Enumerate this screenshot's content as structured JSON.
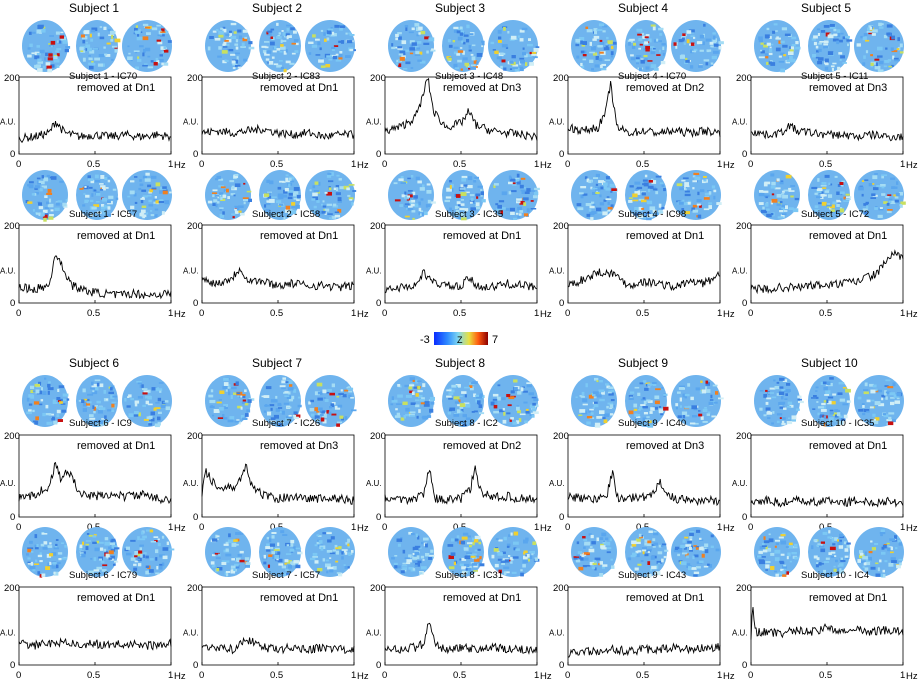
{
  "figure": {
    "colorbar": {
      "min_label": "-3",
      "mid_label": "Z",
      "max_label": "7",
      "colors": [
        "#0a2cff",
        "#2f8cff",
        "#7fd7f0",
        "#e8e040",
        "#ff5a10",
        "#8b0000"
      ]
    },
    "map_palette": [
      "#3a7fe0",
      "#5aa6ee",
      "#7cc8f4",
      "#a4dcf4",
      "#d0eef6",
      "#c8e060",
      "#f0d030",
      "#f08020",
      "#c81010"
    ]
  },
  "chart_data": [
    {
      "type": "line",
      "subject": "Subject 1",
      "component": "Subject 1 - IC70",
      "status": "removed at Dn1",
      "ylabel": "A.U.",
      "ylim": [
        0,
        200
      ],
      "xlim": [
        0,
        1
      ],
      "x_unit": "Hz",
      "xticks": [
        "0",
        "0.5",
        "1"
      ],
      "yticks": [
        "0",
        "200"
      ],
      "x": [
        0,
        0.1,
        0.2,
        0.24,
        0.27,
        0.3,
        0.4,
        0.5,
        0.6,
        0.7,
        0.8,
        0.9,
        1.0
      ],
      "y": [
        40,
        45,
        55,
        85,
        70,
        55,
        45,
        50,
        45,
        50,
        45,
        50,
        45
      ]
    },
    {
      "type": "line",
      "subject": "Subject 2",
      "component": "Subject 2 - IC83",
      "status": "removed at Dn1",
      "ylabel": "A.U.",
      "ylim": [
        0,
        200
      ],
      "xlim": [
        0,
        1
      ],
      "x_unit": "Hz",
      "xticks": [
        "0",
        "0.5",
        "1"
      ],
      "yticks": [
        "0",
        "200"
      ],
      "x": [
        0,
        0.1,
        0.2,
        0.3,
        0.4,
        0.5,
        0.6,
        0.7,
        0.8,
        0.9,
        1.0
      ],
      "y": [
        55,
        60,
        55,
        60,
        65,
        55,
        50,
        55,
        45,
        50,
        50
      ]
    },
    {
      "type": "line",
      "subject": "Subject 3",
      "component": "Subject 3 - IC48",
      "status": "removed at Dn3",
      "ylabel": "A.U.",
      "ylim": [
        0,
        200
      ],
      "xlim": [
        0,
        1
      ],
      "x_unit": "Hz",
      "xticks": [
        "0",
        "0.5",
        "1"
      ],
      "yticks": [
        "0",
        "200"
      ],
      "x": [
        0,
        0.1,
        0.2,
        0.25,
        0.28,
        0.32,
        0.4,
        0.5,
        0.55,
        0.6,
        0.7,
        0.8,
        0.9,
        1.0
      ],
      "y": [
        60,
        70,
        95,
        150,
        200,
        110,
        70,
        80,
        110,
        75,
        60,
        55,
        50,
        45
      ]
    },
    {
      "type": "line",
      "subject": "Subject 4",
      "component": "Subject 4 - IC70",
      "status": "removed at Dn2",
      "ylabel": "A.U.",
      "ylim": [
        0,
        200
      ],
      "xlim": [
        0,
        1
      ],
      "x_unit": "Hz",
      "xticks": [
        "0",
        "0.5",
        "1"
      ],
      "yticks": [
        "0",
        "200"
      ],
      "x": [
        0,
        0.1,
        0.2,
        0.25,
        0.28,
        0.32,
        0.4,
        0.5,
        0.6,
        0.7,
        0.8,
        0.9,
        1.0
      ],
      "y": [
        70,
        60,
        70,
        110,
        185,
        70,
        55,
        60,
        55,
        60,
        55,
        60,
        55
      ]
    },
    {
      "type": "line",
      "subject": "Subject 5",
      "component": "Subject 5 - IC11",
      "status": "removed at Dn3",
      "ylabel": "A.U.",
      "ylim": [
        0,
        200
      ],
      "xlim": [
        0,
        1
      ],
      "x_unit": "Hz",
      "xticks": [
        "0",
        "0.5",
        "1"
      ],
      "yticks": [
        "0",
        "200"
      ],
      "x": [
        0,
        0.1,
        0.2,
        0.25,
        0.3,
        0.4,
        0.5,
        0.6,
        0.7,
        0.8,
        0.9,
        1.0
      ],
      "y": [
        60,
        50,
        55,
        75,
        60,
        55,
        50,
        50,
        45,
        50,
        45,
        45
      ]
    },
    {
      "type": "line",
      "subject": "Subject 1",
      "component": "Subject 1 - IC57",
      "status": "removed at Dn1",
      "ylabel": "A.U.",
      "ylim": [
        0,
        200
      ],
      "xlim": [
        0,
        1
      ],
      "x_unit": "Hz",
      "xticks": [
        "0",
        "0.5",
        "1"
      ],
      "yticks": [
        "0",
        "200"
      ],
      "x": [
        0,
        0.1,
        0.2,
        0.24,
        0.28,
        0.35,
        0.45,
        0.55,
        0.65,
        0.75,
        0.85,
        1.0
      ],
      "y": [
        40,
        35,
        45,
        130,
        95,
        45,
        30,
        25,
        20,
        25,
        20,
        25
      ]
    },
    {
      "type": "line",
      "subject": "Subject 2",
      "component": "Subject 2 - IC58",
      "status": "removed at Dn1",
      "ylabel": "A.U.",
      "ylim": [
        0,
        200
      ],
      "xlim": [
        0,
        1
      ],
      "x_unit": "Hz",
      "xticks": [
        "0",
        "0.5",
        "1"
      ],
      "yticks": [
        "0",
        "200"
      ],
      "x": [
        0,
        0.1,
        0.2,
        0.25,
        0.3,
        0.4,
        0.5,
        0.6,
        0.7,
        0.8,
        0.9,
        1.0
      ],
      "y": [
        60,
        50,
        65,
        90,
        60,
        55,
        45,
        50,
        45,
        45,
        40,
        45
      ]
    },
    {
      "type": "line",
      "subject": "Subject 3",
      "component": "Subject 3 - IC35",
      "status": "removed at Dn1",
      "ylabel": "A.U.",
      "ylim": [
        0,
        200
      ],
      "xlim": [
        0,
        1
      ],
      "x_unit": "Hz",
      "xticks": [
        "0",
        "0.5",
        "1"
      ],
      "yticks": [
        "0",
        "200"
      ],
      "x": [
        0,
        0.1,
        0.2,
        0.26,
        0.3,
        0.4,
        0.5,
        0.55,
        0.6,
        0.7,
        0.8,
        0.9,
        1.0
      ],
      "y": [
        35,
        40,
        45,
        80,
        55,
        45,
        40,
        65,
        45,
        40,
        50,
        45,
        40
      ]
    },
    {
      "type": "line",
      "subject": "Subject 4",
      "component": "Subject 4 - IC98",
      "status": "removed at Dn1",
      "ylabel": "A.U.",
      "ylim": [
        0,
        200
      ],
      "xlim": [
        0,
        1
      ],
      "x_unit": "Hz",
      "xticks": [
        "0",
        "0.5",
        "1"
      ],
      "yticks": [
        "0",
        "200"
      ],
      "x": [
        0,
        0.1,
        0.2,
        0.3,
        0.4,
        0.5,
        0.6,
        0.7,
        0.8,
        0.9,
        1.0
      ],
      "y": [
        45,
        60,
        80,
        75,
        45,
        55,
        50,
        40,
        55,
        50,
        75
      ]
    },
    {
      "type": "line",
      "subject": "Subject 5",
      "component": "Subject 5 - IC72",
      "status": "removed at Dn1",
      "ylabel": "A.U.",
      "ylim": [
        0,
        200
      ],
      "xlim": [
        0,
        1
      ],
      "x_unit": "Hz",
      "xticks": [
        "0",
        "0.5",
        "1"
      ],
      "yticks": [
        "0",
        "200"
      ],
      "x": [
        0,
        0.1,
        0.2,
        0.3,
        0.4,
        0.5,
        0.6,
        0.7,
        0.75,
        0.8,
        0.85,
        0.9,
        0.95,
        1.0
      ],
      "y": [
        35,
        35,
        40,
        40,
        45,
        45,
        50,
        55,
        65,
        70,
        85,
        115,
        125,
        110
      ]
    },
    {
      "type": "line",
      "subject": "Subject 6",
      "component": "Subject 6 - IC9",
      "status": "removed at Dn1",
      "ylabel": "A.U.",
      "ylim": [
        0,
        200
      ],
      "xlim": [
        0,
        1
      ],
      "x_unit": "Hz",
      "xticks": [
        "0",
        "0.5",
        "1"
      ],
      "yticks": [
        "0",
        "200"
      ],
      "x": [
        0,
        0.1,
        0.2,
        0.24,
        0.28,
        0.32,
        0.4,
        0.5,
        0.6,
        0.7,
        0.8,
        0.9,
        1.0
      ],
      "y": [
        45,
        55,
        75,
        130,
        85,
        120,
        55,
        50,
        55,
        50,
        55,
        45,
        45
      ]
    },
    {
      "type": "line",
      "subject": "Subject 7",
      "component": "Subject 7 - IC26",
      "status": "removed at Dn3",
      "ylabel": "A.U.",
      "ylim": [
        0,
        200
      ],
      "xlim": [
        0,
        1
      ],
      "x_unit": "Hz",
      "xticks": [
        "0",
        "0.5",
        "1"
      ],
      "yticks": [
        "0",
        "200"
      ],
      "x": [
        0,
        0.02,
        0.1,
        0.2,
        0.25,
        0.29,
        0.33,
        0.4,
        0.5,
        0.6,
        0.7,
        0.8,
        0.9,
        1.0
      ],
      "y": [
        60,
        115,
        70,
        70,
        90,
        125,
        70,
        55,
        45,
        50,
        45,
        45,
        45,
        40
      ]
    },
    {
      "type": "line",
      "subject": "Subject 8",
      "component": "Subject 8 - IC2",
      "status": "removed at Dn2",
      "ylabel": "A.U.",
      "ylim": [
        0,
        200
      ],
      "xlim": [
        0,
        1
      ],
      "x_unit": "Hz",
      "xticks": [
        "0",
        "0.5",
        "1"
      ],
      "yticks": [
        "0",
        "200"
      ],
      "x": [
        0,
        0.1,
        0.2,
        0.26,
        0.29,
        0.33,
        0.4,
        0.5,
        0.56,
        0.59,
        0.63,
        0.7,
        0.8,
        0.9,
        1.0
      ],
      "y": [
        45,
        40,
        45,
        60,
        125,
        45,
        40,
        45,
        65,
        120,
        60,
        50,
        50,
        45,
        45
      ]
    },
    {
      "type": "line",
      "subject": "Subject 9",
      "component": "Subject 9 - IC40",
      "status": "removed at Dn3",
      "ylabel": "A.U.",
      "ylim": [
        0,
        200
      ],
      "xlim": [
        0,
        1
      ],
      "x_unit": "Hz",
      "xticks": [
        "0",
        "0.5",
        "1"
      ],
      "yticks": [
        "0",
        "200"
      ],
      "x": [
        0,
        0.1,
        0.2,
        0.26,
        0.29,
        0.33,
        0.4,
        0.5,
        0.56,
        0.6,
        0.65,
        0.7,
        0.8,
        0.9,
        1.0
      ],
      "y": [
        50,
        45,
        45,
        60,
        110,
        45,
        45,
        50,
        55,
        90,
        55,
        45,
        40,
        40,
        40
      ]
    },
    {
      "type": "line",
      "subject": "Subject 10",
      "component": "Subject 10 - IC35",
      "status": "removed at Dn1",
      "ylabel": "A.U.",
      "ylim": [
        0,
        200
      ],
      "xlim": [
        0,
        1
      ],
      "x_unit": "Hz",
      "xticks": [
        "0",
        "0.5",
        "1"
      ],
      "yticks": [
        "0",
        "200"
      ],
      "x": [
        0,
        0.1,
        0.2,
        0.3,
        0.4,
        0.5,
        0.6,
        0.7,
        0.8,
        0.9,
        1.0
      ],
      "y": [
        35,
        40,
        35,
        40,
        35,
        40,
        35,
        40,
        35,
        40,
        35
      ]
    },
    {
      "type": "line",
      "subject": "Subject 6",
      "component": "Subject 6 - IC79",
      "status": "removed at Dn1",
      "ylabel": "A.U.",
      "ylim": [
        0,
        200
      ],
      "xlim": [
        0,
        1
      ],
      "x_unit": "Hz",
      "xticks": [
        "0",
        "0.5",
        "1"
      ],
      "yticks": [
        "0",
        "200"
      ],
      "x": [
        0,
        0.1,
        0.2,
        0.3,
        0.4,
        0.5,
        0.6,
        0.7,
        0.8,
        0.9,
        1.0
      ],
      "y": [
        55,
        50,
        55,
        60,
        50,
        55,
        50,
        55,
        50,
        50,
        55
      ]
    },
    {
      "type": "line",
      "subject": "Subject 7",
      "component": "Subject 7 - IC57",
      "status": "removed at Dn1",
      "ylabel": "A.U.",
      "ylim": [
        0,
        200
      ],
      "xlim": [
        0,
        1
      ],
      "x_unit": "Hz",
      "xticks": [
        "0",
        "0.5",
        "1"
      ],
      "yticks": [
        "0",
        "200"
      ],
      "x": [
        0,
        0.1,
        0.2,
        0.26,
        0.3,
        0.4,
        0.5,
        0.6,
        0.7,
        0.8,
        0.9,
        1.0
      ],
      "y": [
        50,
        45,
        40,
        55,
        65,
        45,
        40,
        45,
        40,
        45,
        40,
        40
      ]
    },
    {
      "type": "line",
      "subject": "Subject 8",
      "component": "Subject 8 - IC31",
      "status": "removed at Dn1",
      "ylabel": "A.U.",
      "ylim": [
        0,
        200
      ],
      "xlim": [
        0,
        1
      ],
      "x_unit": "Hz",
      "xticks": [
        "0",
        "0.5",
        "1"
      ],
      "yticks": [
        "0",
        "200"
      ],
      "x": [
        0,
        0.1,
        0.2,
        0.26,
        0.29,
        0.33,
        0.4,
        0.5,
        0.6,
        0.7,
        0.8,
        0.9,
        1.0
      ],
      "y": [
        45,
        40,
        45,
        55,
        120,
        50,
        40,
        45,
        40,
        45,
        40,
        40,
        40
      ]
    },
    {
      "type": "line",
      "subject": "Subject 9",
      "component": "Subject 9 - IC43",
      "status": "removed at Dn1",
      "ylabel": "A.U.",
      "ylim": [
        0,
        200
      ],
      "xlim": [
        0,
        1
      ],
      "x_unit": "Hz",
      "xticks": [
        "0",
        "0.5",
        "1"
      ],
      "yticks": [
        "0",
        "200"
      ],
      "x": [
        0,
        0.1,
        0.2,
        0.3,
        0.4,
        0.5,
        0.6,
        0.7,
        0.8,
        0.9,
        1.0
      ],
      "y": [
        30,
        35,
        35,
        40,
        35,
        40,
        40,
        45,
        40,
        45,
        45
      ]
    },
    {
      "type": "line",
      "subject": "Subject 10",
      "component": "Subject 10 - IC4",
      "status": "removed at Dn1",
      "ylabel": "A.U.",
      "ylim": [
        0,
        200
      ],
      "xlim": [
        0,
        1
      ],
      "x_unit": "Hz",
      "xticks": [
        "0",
        "0.5",
        "1"
      ],
      "yticks": [
        "0",
        "200"
      ],
      "x": [
        0,
        0.01,
        0.03,
        0.1,
        0.2,
        0.3,
        0.4,
        0.5,
        0.6,
        0.7,
        0.8,
        0.9,
        1.0
      ],
      "y": [
        60,
        150,
        85,
        85,
        80,
        90,
        85,
        95,
        85,
        90,
        85,
        90,
        85
      ]
    }
  ]
}
